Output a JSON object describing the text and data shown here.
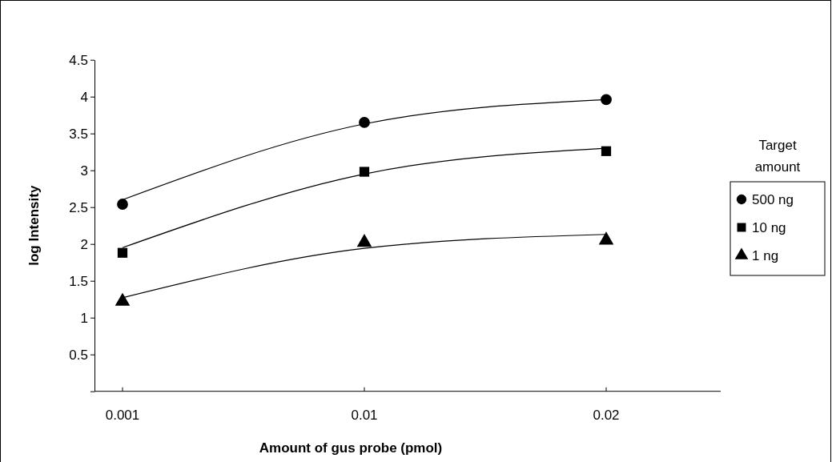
{
  "chart_data": {
    "type": "scatter",
    "xlabel": "Amount of gus probe  (pmol)",
    "ylabel": "log Intensity",
    "legend_title": "Target amount",
    "categories": [
      "0.001",
      "0.01",
      "0.02"
    ],
    "ylim": [
      0,
      4.5
    ],
    "yticks": [
      {
        "value": 0,
        "label": null
      },
      0.5,
      1,
      1.5,
      2,
      2.5,
      3,
      3.5,
      4,
      4.5
    ],
    "grid": false,
    "legend": "right",
    "series": [
      {
        "name": "500 ng",
        "color": "#000000",
        "marker": "circle",
        "values": [
          2.54,
          3.65,
          3.96
        ]
      },
      {
        "name": "10 ng",
        "color": "#000000",
        "marker": "square",
        "values": [
          1.88,
          2.98,
          3.26
        ]
      },
      {
        "name": "1 ng",
        "color": "#000000",
        "marker": "triangle",
        "values": [
          1.22,
          2.02,
          2.05
        ]
      },
      {
        "type": "line",
        "color": "#000000",
        "values": [
          2.6,
          3.63,
          3.96
        ]
      },
      {
        "type": "line",
        "color": "#000000",
        "values": [
          1.95,
          2.95,
          3.3
        ]
      },
      {
        "type": "line",
        "color": "#000000",
        "values": [
          1.27,
          1.94,
          2.13
        ]
      }
    ]
  }
}
